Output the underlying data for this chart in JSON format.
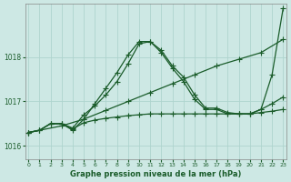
{
  "title": "",
  "xlabel": "Graphe pression niveau de la mer (hPa)",
  "ylabel": "",
  "bg_color": "#cde8e4",
  "grid_color": "#aed4ce",
  "line_color": "#1a5c2a",
  "ylim": [
    1015.7,
    1019.2
  ],
  "xlim": [
    -0.3,
    23.3
  ],
  "yticks": [
    1016,
    1017,
    1018
  ],
  "xticks": [
    0,
    1,
    2,
    3,
    4,
    5,
    6,
    7,
    8,
    9,
    10,
    11,
    12,
    13,
    14,
    15,
    16,
    17,
    18,
    19,
    20,
    21,
    22,
    23
  ],
  "series": [
    {
      "x": [
        0,
        1,
        2,
        3,
        4,
        5,
        6,
        7,
        8,
        9,
        10,
        11,
        12,
        13,
        14,
        15,
        16,
        17,
        18,
        19,
        20,
        21,
        22,
        23
      ],
      "y": [
        1016.3,
        1016.35,
        1016.5,
        1016.5,
        1016.4,
        1016.7,
        1016.9,
        1017.15,
        1017.45,
        1017.85,
        1018.3,
        1018.35,
        1018.15,
        1017.8,
        1017.55,
        1017.15,
        1016.85,
        1016.85,
        1016.75,
        1016.72,
        1016.72,
        1016.82,
        1017.6,
        1019.1
      ],
      "marker": "+",
      "markersize": 4,
      "linewidth": 0.9,
      "linestyle": "-"
    },
    {
      "x": [
        0,
        3,
        5,
        7,
        9,
        11,
        13,
        15,
        17,
        19,
        21,
        23
      ],
      "y": [
        1016.3,
        1016.45,
        1016.6,
        1016.8,
        1017.0,
        1017.2,
        1017.4,
        1017.6,
        1017.8,
        1017.95,
        1018.1,
        1018.4
      ],
      "marker": "+",
      "markersize": 4,
      "linewidth": 0.9,
      "linestyle": "-"
    },
    {
      "x": [
        0,
        1,
        2,
        3,
        4,
        5,
        6,
        7,
        8,
        9,
        10,
        11,
        12,
        13,
        14,
        15,
        16,
        17,
        18,
        19,
        20,
        21,
        22,
        23
      ],
      "y": [
        1016.3,
        1016.35,
        1016.5,
        1016.5,
        1016.35,
        1016.6,
        1016.95,
        1017.3,
        1017.65,
        1018.05,
        1018.35,
        1018.35,
        1018.1,
        1017.75,
        1017.45,
        1017.05,
        1016.82,
        1016.82,
        1016.72,
        1016.72,
        1016.72,
        1016.82,
        1016.95,
        1017.1
      ],
      "marker": "+",
      "markersize": 4,
      "linewidth": 0.9,
      "linestyle": "-"
    },
    {
      "x": [
        0,
        1,
        2,
        3,
        4,
        5,
        6,
        7,
        8,
        9,
        10,
        11,
        12,
        13,
        14,
        15,
        16,
        17,
        18,
        19,
        20,
        21,
        22,
        23
      ],
      "y": [
        1016.3,
        1016.35,
        1016.5,
        1016.5,
        1016.38,
        1016.52,
        1016.58,
        1016.62,
        1016.65,
        1016.68,
        1016.7,
        1016.72,
        1016.72,
        1016.72,
        1016.72,
        1016.72,
        1016.72,
        1016.72,
        1016.72,
        1016.72,
        1016.72,
        1016.75,
        1016.78,
        1016.82
      ],
      "marker": "+",
      "markersize": 4,
      "linewidth": 0.9,
      "linestyle": "-"
    }
  ]
}
